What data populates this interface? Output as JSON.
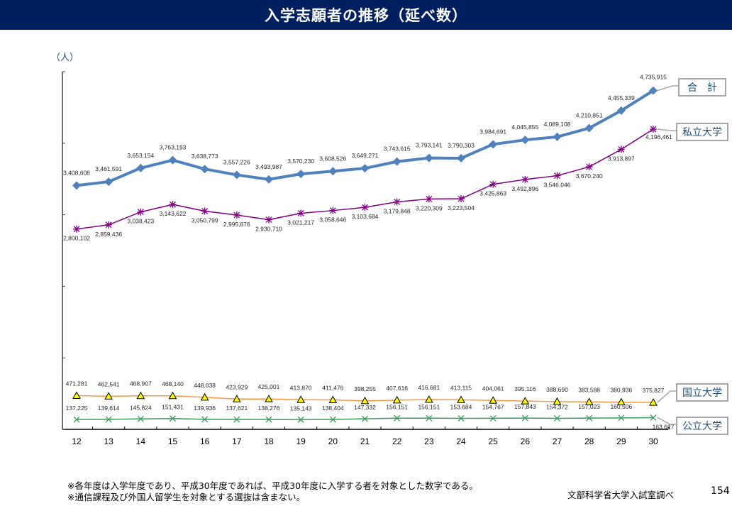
{
  "header": {
    "title": "入学志願者の推移（延べ数）"
  },
  "unit_label": "（人）",
  "footnotes": [
    "※各年度は入学年度であり、平成30年度であれば、平成30年度に入学する者を対象とした数字である。",
    "※通信課程及び外国人留学生を対象とする選抜は含まない。"
  ],
  "source": "文部科学省大学入試室調べ",
  "page_number": "154",
  "chart_data": {
    "type": "line",
    "title": "入学志願者の推移（延べ数）",
    "xlabel": "",
    "ylabel": "（人）",
    "x": [
      "12",
      "13",
      "14",
      "15",
      "16",
      "17",
      "18",
      "19",
      "20",
      "21",
      "22",
      "23",
      "24",
      "25",
      "26",
      "27",
      "28",
      "29",
      "30"
    ],
    "ylim": [
      0,
      5000000
    ],
    "y_ticks": [
      0,
      1000000,
      2000000,
      3000000,
      4000000,
      5000000
    ],
    "y_tick_labels_shown": false,
    "grid": false,
    "legend": "right (labels attached to line ends)",
    "series": [
      {
        "name": "合　計",
        "key": "total",
        "color": "#4f81bd",
        "marker": "diamond",
        "label_pos": "above",
        "values": [
          3408608,
          3461591,
          3653154,
          3763193,
          3638773,
          3557226,
          3493987,
          3570230,
          3608526,
          3649271,
          3743615,
          3793141,
          3790303,
          3984691,
          4045855,
          4089108,
          4210851,
          4455339,
          4735915
        ]
      },
      {
        "name": "私立大学",
        "key": "private",
        "color": "#7f007f",
        "marker": "star",
        "label_pos": "below",
        "values": [
          2800102,
          2859436,
          3038423,
          3143622,
          3050799,
          2995676,
          2930710,
          3021217,
          3058646,
          3103684,
          3179848,
          3220309,
          3223504,
          3425863,
          3492896,
          3546046,
          3670240,
          3913897,
          4196461
        ]
      },
      {
        "name": "国立大学",
        "key": "national",
        "color": "#f79646",
        "marker": "triangle",
        "label_pos": "above",
        "values": [
          471281,
          462541,
          468907,
          468140,
          448038,
          423929,
          425001,
          413870,
          411476,
          398255,
          407616,
          416681,
          413115,
          404061,
          395116,
          388690,
          383588,
          380936,
          375827
        ]
      },
      {
        "name": "公立大学",
        "key": "public",
        "color": "#3a9c5e",
        "marker": "x",
        "label_pos": "above",
        "values": [
          137225,
          139614,
          145824,
          151431,
          139936,
          137621,
          138276,
          135143,
          138404,
          147332,
          156151,
          156151,
          153684,
          154767,
          157843,
          154372,
          157023,
          160506,
          163627
        ]
      }
    ]
  }
}
